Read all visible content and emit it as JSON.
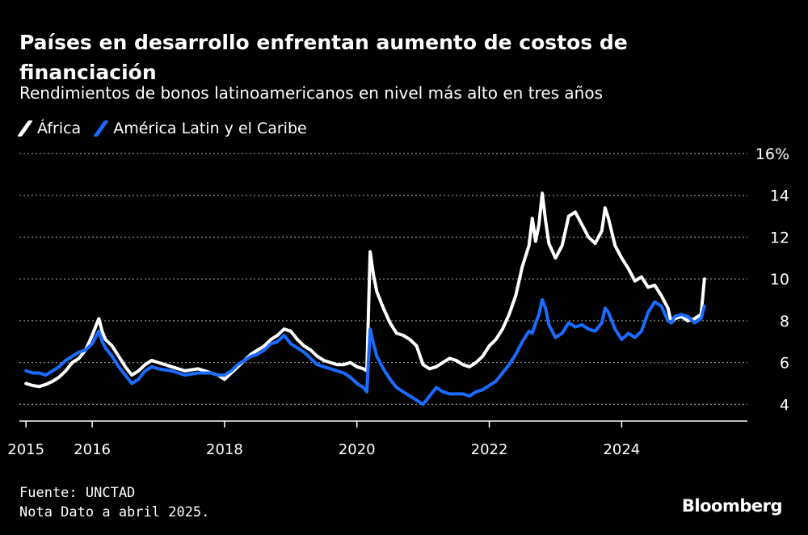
{
  "title": "Países en desarrollo enfrentan aumento de costos de financiación",
  "subtitle": "Rendimientos de bonos latinoamericanos en nivel más alto en tres años",
  "colors": {
    "africa": "#ffffff",
    "latam": "#1a6bff",
    "grid": "#8a8a8a",
    "background": "#000000"
  },
  "chart_data": {
    "type": "line",
    "title": "Países en desarrollo enfrentan aumento de costos de financiación",
    "xlabel": "",
    "ylabel": "",
    "xlim": [
      2014.9,
      2025.9
    ],
    "ylim": [
      3.2,
      16
    ],
    "y_ticks": [
      {
        "value": 4,
        "label": "4"
      },
      {
        "value": 6,
        "label": "6"
      },
      {
        "value": 8,
        "label": "8"
      },
      {
        "value": 10,
        "label": "10"
      },
      {
        "value": 12,
        "label": "12"
      },
      {
        "value": 14,
        "label": "14"
      },
      {
        "value": 16,
        "label": "16%"
      }
    ],
    "x_ticks": [
      {
        "value": 2015,
        "label": "2015"
      },
      {
        "value": 2016,
        "label": "2016"
      },
      {
        "value": 2018,
        "label": "2018"
      },
      {
        "value": 2020,
        "label": "2020"
      },
      {
        "value": 2022,
        "label": "2022"
      },
      {
        "value": 2024,
        "label": "2024"
      }
    ],
    "grid": "horizontal dotted",
    "legend": "top-left",
    "series": [
      {
        "name": "África",
        "color": "#ffffff",
        "points": [
          [
            2015.0,
            5.0
          ],
          [
            2015.1,
            4.9
          ],
          [
            2015.2,
            4.85
          ],
          [
            2015.3,
            4.95
          ],
          [
            2015.4,
            5.1
          ],
          [
            2015.5,
            5.3
          ],
          [
            2015.6,
            5.6
          ],
          [
            2015.7,
            6.0
          ],
          [
            2015.8,
            6.2
          ],
          [
            2015.9,
            6.6
          ],
          [
            2016.0,
            7.3
          ],
          [
            2016.05,
            7.7
          ],
          [
            2016.1,
            8.1
          ],
          [
            2016.15,
            7.5
          ],
          [
            2016.2,
            7.1
          ],
          [
            2016.3,
            6.8
          ],
          [
            2016.4,
            6.3
          ],
          [
            2016.5,
            5.8
          ],
          [
            2016.6,
            5.4
          ],
          [
            2016.7,
            5.6
          ],
          [
            2016.8,
            5.9
          ],
          [
            2016.9,
            6.1
          ],
          [
            2017.0,
            6.0
          ],
          [
            2017.2,
            5.8
          ],
          [
            2017.4,
            5.6
          ],
          [
            2017.6,
            5.7
          ],
          [
            2017.8,
            5.5
          ],
          [
            2017.9,
            5.4
          ],
          [
            2018.0,
            5.2
          ],
          [
            2018.1,
            5.5
          ],
          [
            2018.2,
            5.8
          ],
          [
            2018.3,
            6.1
          ],
          [
            2018.4,
            6.4
          ],
          [
            2018.5,
            6.6
          ],
          [
            2018.6,
            6.8
          ],
          [
            2018.7,
            7.1
          ],
          [
            2018.8,
            7.3
          ],
          [
            2018.9,
            7.6
          ],
          [
            2019.0,
            7.5
          ],
          [
            2019.1,
            7.1
          ],
          [
            2019.2,
            6.8
          ],
          [
            2019.3,
            6.6
          ],
          [
            2019.4,
            6.3
          ],
          [
            2019.5,
            6.1
          ],
          [
            2019.6,
            6.0
          ],
          [
            2019.7,
            5.9
          ],
          [
            2019.8,
            5.9
          ],
          [
            2019.9,
            6.0
          ],
          [
            2020.0,
            5.8
          ],
          [
            2020.1,
            5.7
          ],
          [
            2020.15,
            5.6
          ],
          [
            2020.2,
            11.3
          ],
          [
            2020.25,
            10.2
          ],
          [
            2020.3,
            9.4
          ],
          [
            2020.4,
            8.6
          ],
          [
            2020.5,
            7.9
          ],
          [
            2020.6,
            7.4
          ],
          [
            2020.7,
            7.3
          ],
          [
            2020.8,
            7.1
          ],
          [
            2020.9,
            6.8
          ],
          [
            2021.0,
            5.9
          ],
          [
            2021.1,
            5.7
          ],
          [
            2021.2,
            5.8
          ],
          [
            2021.3,
            6.0
          ],
          [
            2021.4,
            6.2
          ],
          [
            2021.5,
            6.1
          ],
          [
            2021.6,
            5.9
          ],
          [
            2021.7,
            5.8
          ],
          [
            2021.8,
            6.0
          ],
          [
            2021.9,
            6.3
          ],
          [
            2022.0,
            6.8
          ],
          [
            2022.1,
            7.1
          ],
          [
            2022.2,
            7.6
          ],
          [
            2022.3,
            8.3
          ],
          [
            2022.4,
            9.2
          ],
          [
            2022.5,
            10.6
          ],
          [
            2022.6,
            11.6
          ],
          [
            2022.65,
            12.9
          ],
          [
            2022.7,
            11.8
          ],
          [
            2022.75,
            12.6
          ],
          [
            2022.8,
            14.1
          ],
          [
            2022.85,
            12.8
          ],
          [
            2022.9,
            11.7
          ],
          [
            2023.0,
            11.0
          ],
          [
            2023.1,
            11.6
          ],
          [
            2023.2,
            13.0
          ],
          [
            2023.3,
            13.2
          ],
          [
            2023.4,
            12.6
          ],
          [
            2023.5,
            12.0
          ],
          [
            2023.6,
            11.7
          ],
          [
            2023.7,
            12.3
          ],
          [
            2023.75,
            13.4
          ],
          [
            2023.8,
            12.9
          ],
          [
            2023.9,
            11.6
          ],
          [
            2024.0,
            11.0
          ],
          [
            2024.1,
            10.5
          ],
          [
            2024.2,
            9.9
          ],
          [
            2024.3,
            10.1
          ],
          [
            2024.4,
            9.6
          ],
          [
            2024.5,
            9.7
          ],
          [
            2024.6,
            9.2
          ],
          [
            2024.7,
            8.6
          ],
          [
            2024.75,
            7.9
          ],
          [
            2024.8,
            8.1
          ],
          [
            2024.9,
            8.2
          ],
          [
            2025.0,
            8.0
          ],
          [
            2025.1,
            8.1
          ],
          [
            2025.2,
            8.3
          ],
          [
            2025.25,
            10.0
          ]
        ]
      },
      {
        "name": "América Latin y el Caribe",
        "color": "#1a6bff",
        "points": [
          [
            2015.0,
            5.6
          ],
          [
            2015.1,
            5.5
          ],
          [
            2015.2,
            5.5
          ],
          [
            2015.3,
            5.4
          ],
          [
            2015.4,
            5.6
          ],
          [
            2015.5,
            5.8
          ],
          [
            2015.6,
            6.1
          ],
          [
            2015.7,
            6.3
          ],
          [
            2015.8,
            6.5
          ],
          [
            2015.9,
            6.6
          ],
          [
            2016.0,
            6.9
          ],
          [
            2016.05,
            7.2
          ],
          [
            2016.1,
            7.5
          ],
          [
            2016.15,
            7.0
          ],
          [
            2016.2,
            6.7
          ],
          [
            2016.3,
            6.3
          ],
          [
            2016.4,
            5.8
          ],
          [
            2016.5,
            5.4
          ],
          [
            2016.6,
            5.0
          ],
          [
            2016.7,
            5.2
          ],
          [
            2016.8,
            5.6
          ],
          [
            2016.9,
            5.8
          ],
          [
            2017.0,
            5.7
          ],
          [
            2017.2,
            5.6
          ],
          [
            2017.4,
            5.4
          ],
          [
            2017.6,
            5.5
          ],
          [
            2017.8,
            5.5
          ],
          [
            2017.9,
            5.4
          ],
          [
            2018.0,
            5.4
          ],
          [
            2018.1,
            5.6
          ],
          [
            2018.2,
            5.9
          ],
          [
            2018.3,
            6.1
          ],
          [
            2018.4,
            6.3
          ],
          [
            2018.5,
            6.4
          ],
          [
            2018.6,
            6.6
          ],
          [
            2018.7,
            6.9
          ],
          [
            2018.8,
            7.0
          ],
          [
            2018.9,
            7.3
          ],
          [
            2019.0,
            6.9
          ],
          [
            2019.1,
            6.7
          ],
          [
            2019.2,
            6.5
          ],
          [
            2019.3,
            6.2
          ],
          [
            2019.4,
            5.9
          ],
          [
            2019.5,
            5.8
          ],
          [
            2019.6,
            5.7
          ],
          [
            2019.7,
            5.6
          ],
          [
            2019.8,
            5.5
          ],
          [
            2019.9,
            5.3
          ],
          [
            2020.0,
            5.0
          ],
          [
            2020.1,
            4.8
          ],
          [
            2020.15,
            4.6
          ],
          [
            2020.2,
            7.6
          ],
          [
            2020.25,
            6.9
          ],
          [
            2020.3,
            6.3
          ],
          [
            2020.4,
            5.7
          ],
          [
            2020.5,
            5.2
          ],
          [
            2020.6,
            4.8
          ],
          [
            2020.7,
            4.6
          ],
          [
            2020.8,
            4.4
          ],
          [
            2020.9,
            4.2
          ],
          [
            2021.0,
            4.0
          ],
          [
            2021.1,
            4.4
          ],
          [
            2021.2,
            4.8
          ],
          [
            2021.3,
            4.6
          ],
          [
            2021.4,
            4.5
          ],
          [
            2021.5,
            4.5
          ],
          [
            2021.6,
            4.5
          ],
          [
            2021.7,
            4.4
          ],
          [
            2021.8,
            4.6
          ],
          [
            2021.9,
            4.7
          ],
          [
            2022.0,
            4.9
          ],
          [
            2022.1,
            5.1
          ],
          [
            2022.2,
            5.5
          ],
          [
            2022.3,
            5.9
          ],
          [
            2022.4,
            6.4
          ],
          [
            2022.5,
            7.0
          ],
          [
            2022.6,
            7.5
          ],
          [
            2022.65,
            7.4
          ],
          [
            2022.7,
            7.9
          ],
          [
            2022.75,
            8.3
          ],
          [
            2022.8,
            9.0
          ],
          [
            2022.85,
            8.6
          ],
          [
            2022.9,
            7.8
          ],
          [
            2023.0,
            7.2
          ],
          [
            2023.1,
            7.4
          ],
          [
            2023.2,
            7.9
          ],
          [
            2023.3,
            7.7
          ],
          [
            2023.4,
            7.8
          ],
          [
            2023.5,
            7.6
          ],
          [
            2023.6,
            7.5
          ],
          [
            2023.7,
            7.9
          ],
          [
            2023.75,
            8.6
          ],
          [
            2023.8,
            8.4
          ],
          [
            2023.9,
            7.6
          ],
          [
            2024.0,
            7.1
          ],
          [
            2024.1,
            7.4
          ],
          [
            2024.2,
            7.2
          ],
          [
            2024.3,
            7.5
          ],
          [
            2024.4,
            8.4
          ],
          [
            2024.5,
            8.9
          ],
          [
            2024.6,
            8.7
          ],
          [
            2024.7,
            8.0
          ],
          [
            2024.75,
            7.9
          ],
          [
            2024.8,
            8.2
          ],
          [
            2024.9,
            8.3
          ],
          [
            2025.0,
            8.2
          ],
          [
            2025.1,
            7.9
          ],
          [
            2025.2,
            8.1
          ],
          [
            2025.25,
            8.7
          ]
        ]
      }
    ]
  },
  "source": "Fuente: UNCTAD",
  "note": "Nota Dato a abril 2025.",
  "brand": "Bloomberg"
}
